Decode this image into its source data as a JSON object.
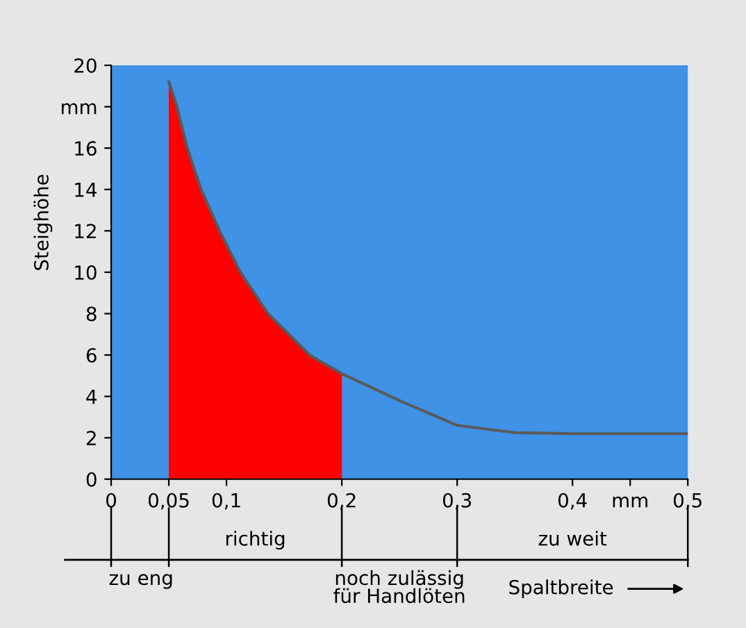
{
  "chart_data": {
    "type": "line",
    "xlabel": "Spaltbreite",
    "ylabel": "Steighöhe",
    "xlim": [
      0,
      0.5
    ],
    "ylim": [
      0,
      20
    ],
    "xticks": [
      0,
      {
        "value": 0.05,
        "label": "0,05"
      },
      {
        "value": 0.1,
        "label": "0,1"
      },
      {
        "value": 0.2,
        "label": "0,2"
      },
      {
        "value": 0.3,
        "label": "0,3"
      },
      {
        "value": 0.4,
        "label": "0,4"
      },
      {
        "value": 0.45,
        "label": "mm"
      },
      {
        "value": 0.5,
        "label": "0,5"
      }
    ],
    "yticks": [
      0,
      2,
      4,
      6,
      8,
      10,
      12,
      14,
      16,
      {
        "value": 18,
        "label": "mm"
      },
      20
    ],
    "series": [
      {
        "type": "area",
        "color": "#ff0000",
        "x": [
          0.05,
          0.057,
          0.066,
          0.078,
          0.094,
          0.112,
          0.136,
          0.172,
          0.2
        ],
        "values": [
          19.2,
          18,
          16,
          14,
          12,
          10,
          8,
          6,
          5.1
        ]
      },
      {
        "color": "#5a5a5a",
        "x": [
          0.05,
          0.057,
          0.066,
          0.078,
          0.094,
          0.112,
          0.136,
          0.172,
          0.2,
          0.25,
          0.3,
          0.35,
          0.4,
          0.45,
          0.5
        ],
        "values": [
          19.2,
          18,
          16,
          14,
          12,
          10,
          8,
          6,
          5.1,
          3.8,
          2.6,
          2.25,
          2.2,
          2.2,
          2.2
        ]
      }
    ],
    "annotations": [
      "zu eng",
      "richtig",
      "noch zulässig\nfür Handlöten",
      "zu weit"
    ],
    "grid": false,
    "legend": false,
    "marker": "none",
    "line_style": "solid"
  }
}
